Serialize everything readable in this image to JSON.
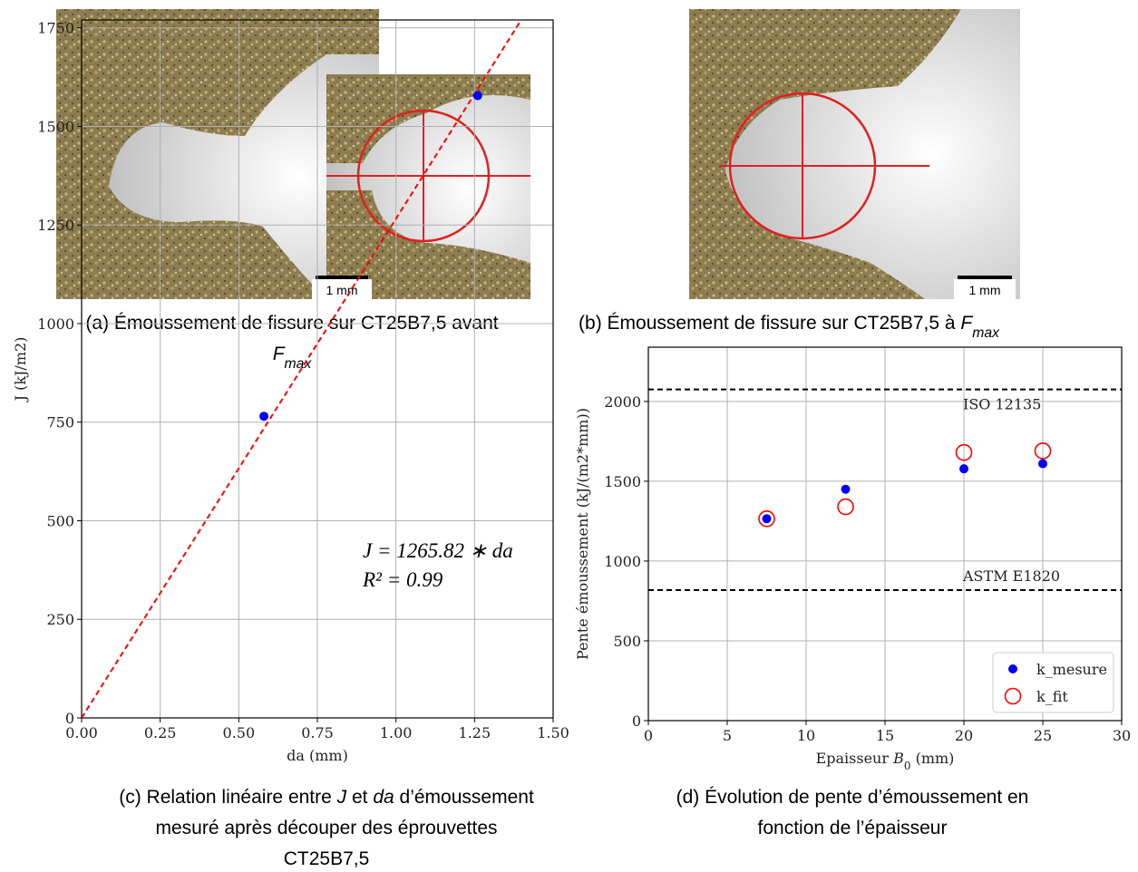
{
  "panels": [
    {
      "scale_label": "1 mm",
      "caption": [
        [
          {
            "t": "(a) Émoussement de fissure sur CT25B7,5 avant"
          }
        ],
        [
          {
            "t": "F",
            "i": true
          },
          {
            "t": "max",
            "i": true,
            "sub": true
          }
        ]
      ]
    },
    {
      "scale_label": "1 mm",
      "caption": [
        [
          {
            "t": "(b) Émoussement de fissure sur CT25B7,5 à "
          },
          {
            "t": "F",
            "i": true
          },
          {
            "t": "max",
            "i": true,
            "sub": true
          }
        ]
      ]
    }
  ],
  "chart_data": [
    {
      "type": "scatter",
      "caption": [
        [
          {
            "t": "(c) Relation linéaire entre "
          },
          {
            "t": "J",
            "i": true
          },
          {
            "t": " et "
          },
          {
            "t": "da",
            "i": true
          },
          {
            "t": " d’émoussement"
          }
        ],
        [
          {
            "t": "mesuré après découper des éprouvettes"
          }
        ],
        [
          {
            "t": "CT25B7,5"
          }
        ]
      ],
      "x_label": [
        [
          {
            "t": "da (mm)"
          }
        ]
      ],
      "y_label": [
        [
          {
            "t": "J (kJ/m2)"
          }
        ]
      ],
      "annotations": [
        "J = 1265.82 ∗ da",
        "R² = 0.99"
      ],
      "xlim": [
        0,
        1.5
      ],
      "ylim": [
        0,
        1770
      ],
      "xticks": [
        {
          "value": 0,
          "label": "0.00"
        },
        {
          "value": 0.25,
          "label": "0.25"
        },
        {
          "value": 0.5,
          "label": "0.50"
        },
        {
          "value": 0.75,
          "label": "0.75"
        },
        {
          "value": 1,
          "label": "1.00"
        },
        {
          "value": 1.25,
          "label": "1.25"
        },
        {
          "value": 1.5,
          "label": "1.50"
        }
      ],
      "yticks": [
        0,
        250,
        500,
        750,
        1000,
        1250,
        1500,
        1750
      ],
      "grid": true,
      "series": [
        {
          "x": [
            0.58,
            1.26
          ],
          "values": [
            765,
            1578
          ],
          "color": "#0000ff",
          "marker": "dot"
        }
      ],
      "fit": {
        "slope": 1265.82,
        "color": "#ff0000"
      }
    },
    {
      "type": "scatter",
      "caption": [
        [
          {
            "t": "(d) Évolution de pente d’émoussement en"
          }
        ],
        [
          {
            "t": "fonction de l’épaisseur"
          }
        ]
      ],
      "x_label": [
        [
          {
            "t": "Epaisseur "
          },
          {
            "t": "B",
            "i": true
          },
          {
            "t": "0",
            "sub": true
          },
          {
            "t": " (mm)"
          }
        ]
      ],
      "y_label": [
        [
          {
            "t": "Pente émoussement (kJ/(m2*mm))"
          }
        ]
      ],
      "xlim": [
        0,
        30
      ],
      "ylim": [
        0,
        2340
      ],
      "xticks": [
        0,
        5,
        10,
        15,
        20,
        25,
        30
      ],
      "yticks": [
        0,
        500,
        1000,
        1500,
        2000
      ],
      "grid": true,
      "legend": "lower right",
      "series": [
        {
          "name": "k_mesure",
          "x": [
            7.5,
            12.5,
            20,
            25
          ],
          "values": [
            1265,
            1450,
            1578,
            1610
          ],
          "color": "#0000ff",
          "marker": "dot"
        },
        {
          "name": "k_fit",
          "x": [
            7.5,
            12.5,
            20,
            25
          ],
          "values": [
            1265,
            1340,
            1680,
            1690
          ],
          "color": "#ff0000",
          "marker": "ring"
        }
      ],
      "hlines": [
        {
          "value": 2075,
          "label": "ISO 12135"
        },
        {
          "value": 818,
          "label": "ASTM E1820"
        }
      ]
    }
  ]
}
